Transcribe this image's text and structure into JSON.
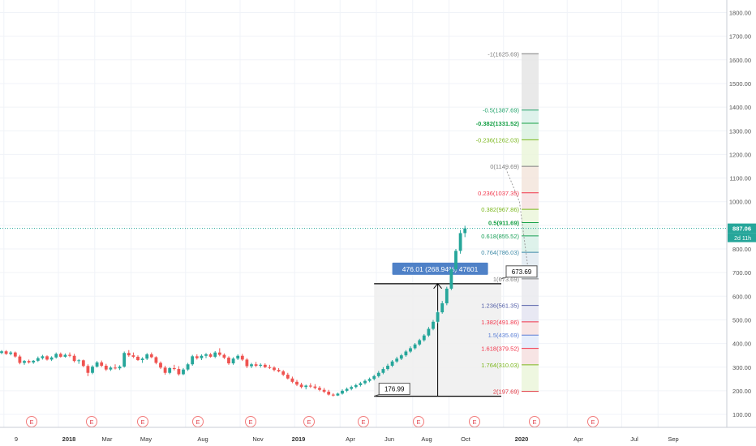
{
  "chart_data": {
    "type": "candlestick",
    "ylim": [
      70,
      1850
    ],
    "y_ticks": [
      "1800.00",
      "1700.00",
      "1600.00",
      "1500.00",
      "1400.00",
      "1300.00",
      "1200.00",
      "1100.00",
      "1000.00",
      "900.00",
      "800.00",
      "700.00",
      "600.00",
      "500.00",
      "400.00",
      "300.00",
      "200.00",
      "100.00"
    ],
    "y_tick_values": [
      1800,
      1700,
      1600,
      1500,
      1400,
      1300,
      1200,
      1100,
      1000,
      900,
      800,
      700,
      600,
      500,
      400,
      300,
      200,
      100
    ],
    "x_ticks": [
      {
        "label": "9",
        "t": 0.5
      },
      {
        "label": "2018",
        "t": 12.5,
        "bold": true
      },
      {
        "label": "Mar",
        "t": 20.5
      },
      {
        "label": "May",
        "t": 28.5
      },
      {
        "label": "Aug",
        "t": 40.5
      },
      {
        "label": "Nov",
        "t": 52.5
      },
      {
        "label": "2019",
        "t": 64.5,
        "bold": true
      },
      {
        "label": "Apr",
        "t": 74.5
      },
      {
        "label": "Jun",
        "t": 82.5
      },
      {
        "label": "Aug",
        "t": 90.5
      },
      {
        "label": "Oct",
        "t": 98.5
      },
      {
        "label": "2020",
        "t": 110.5,
        "bold": true
      },
      {
        "label": "Apr",
        "t": 124.5
      },
      {
        "label": "Jul",
        "t": 136.5
      },
      {
        "label": "Sep",
        "t": 144.5
      }
    ],
    "earnings_markers": [
      "E",
      "E",
      "E",
      "E",
      "E",
      "E",
      "E",
      "E",
      "E",
      "E",
      "E",
      "E"
    ],
    "earnings_t": [
      6,
      19,
      30,
      42,
      53,
      66,
      77,
      89,
      101,
      113,
      126,
      0
    ],
    "candles": [
      [
        360,
        372,
        355,
        367
      ],
      [
        367,
        372,
        352,
        356
      ],
      [
        356,
        368,
        350,
        362
      ],
      [
        362,
        366,
        340,
        345
      ],
      [
        345,
        352,
        312,
        318
      ],
      [
        318,
        330,
        310,
        326
      ],
      [
        326,
        332,
        315,
        320
      ],
      [
        320,
        330,
        314,
        327
      ],
      [
        327,
        345,
        322,
        338
      ],
      [
        338,
        352,
        332,
        346
      ],
      [
        346,
        350,
        328,
        332
      ],
      [
        332,
        346,
        326,
        341
      ],
      [
        341,
        362,
        336,
        356
      ],
      [
        356,
        362,
        340,
        344
      ],
      [
        344,
        358,
        340,
        352
      ],
      [
        352,
        362,
        342,
        348
      ],
      [
        348,
        356,
        320,
        326
      ],
      [
        326,
        334,
        314,
        329
      ],
      [
        329,
        332,
        300,
        305
      ],
      [
        305,
        312,
        262,
        276
      ],
      [
        276,
        308,
        270,
        302
      ],
      [
        302,
        326,
        298,
        320
      ],
      [
        320,
        328,
        300,
        306
      ],
      [
        306,
        314,
        284,
        290
      ],
      [
        290,
        304,
        284,
        298
      ],
      [
        298,
        312,
        290,
        295
      ],
      [
        295,
        308,
        288,
        302
      ],
      [
        302,
        366,
        298,
        360
      ],
      [
        360,
        372,
        344,
        350
      ],
      [
        350,
        362,
        338,
        344
      ],
      [
        344,
        350,
        326,
        330
      ],
      [
        330,
        342,
        318,
        336
      ],
      [
        336,
        360,
        330,
        354
      ],
      [
        354,
        362,
        338,
        342
      ],
      [
        342,
        346,
        312,
        318
      ],
      [
        318,
        324,
        292,
        298
      ],
      [
        298,
        306,
        268,
        276
      ],
      [
        276,
        300,
        270,
        296
      ],
      [
        296,
        310,
        286,
        292
      ],
      [
        292,
        304,
        264,
        270
      ],
      [
        270,
        296,
        266,
        290
      ],
      [
        290,
        318,
        284,
        312
      ],
      [
        312,
        352,
        306,
        346
      ],
      [
        346,
        354,
        332,
        338
      ],
      [
        338,
        354,
        330,
        348
      ],
      [
        348,
        360,
        338,
        354
      ],
      [
        354,
        360,
        340,
        344
      ],
      [
        344,
        368,
        338,
        362
      ],
      [
        362,
        380,
        346,
        352
      ],
      [
        352,
        358,
        334,
        340
      ],
      [
        340,
        346,
        310,
        316
      ],
      [
        316,
        342,
        310,
        336
      ],
      [
        336,
        354,
        330,
        348
      ],
      [
        348,
        356,
        326,
        332
      ],
      [
        332,
        338,
        296,
        304
      ],
      [
        304,
        318,
        296,
        312
      ],
      [
        312,
        322,
        300,
        306
      ],
      [
        306,
        316,
        298,
        310
      ],
      [
        310,
        316,
        296,
        300
      ],
      [
        300,
        310,
        292,
        298
      ],
      [
        298,
        304,
        282,
        288
      ],
      [
        288,
        296,
        278,
        282
      ],
      [
        282,
        288,
        262,
        268
      ],
      [
        268,
        276,
        248,
        252
      ],
      [
        252,
        260,
        232,
        238
      ],
      [
        238,
        246,
        220,
        226
      ],
      [
        226,
        234,
        210,
        216
      ],
      [
        216,
        226,
        206,
        222
      ],
      [
        222,
        232,
        212,
        218
      ],
      [
        218,
        228,
        206,
        212
      ],
      [
        212,
        220,
        198,
        204
      ],
      [
        204,
        212,
        190,
        196
      ],
      [
        196,
        204,
        180,
        184
      ],
      [
        184,
        190,
        176,
        180
      ],
      [
        180,
        192,
        178,
        188
      ],
      [
        188,
        206,
        184,
        200
      ],
      [
        200,
        214,
        194,
        208
      ],
      [
        208,
        222,
        202,
        216
      ],
      [
        216,
        230,
        210,
        224
      ],
      [
        224,
        238,
        218,
        232
      ],
      [
        232,
        248,
        226,
        242
      ],
      [
        242,
        256,
        236,
        250
      ],
      [
        250,
        268,
        244,
        262
      ],
      [
        262,
        284,
        256,
        276
      ],
      [
        276,
        300,
        270,
        292
      ],
      [
        292,
        314,
        286,
        306
      ],
      [
        306,
        330,
        300,
        324
      ],
      [
        324,
        344,
        318,
        336
      ],
      [
        336,
        356,
        330,
        350
      ],
      [
        350,
        372,
        344,
        366
      ],
      [
        366,
        388,
        360,
        380
      ],
      [
        380,
        402,
        374,
        396
      ],
      [
        396,
        420,
        390,
        414
      ],
      [
        414,
        440,
        408,
        434
      ],
      [
        434,
        470,
        428,
        462
      ],
      [
        462,
        500,
        456,
        492
      ],
      [
        492,
        540,
        486,
        532
      ],
      [
        532,
        580,
        526,
        570
      ],
      [
        570,
        640,
        562,
        632
      ],
      [
        632,
        720,
        626,
        714
      ],
      [
        714,
        800,
        708,
        792
      ],
      [
        792,
        880,
        780,
        867
      ],
      [
        867,
        898,
        850,
        887
      ]
    ],
    "projection": {
      "label": "476.01 (268.94%) 47601",
      "from_price": 176.99,
      "to_price": 652.99,
      "from_t": 82,
      "to_t": 110,
      "mid_t": 96
    },
    "fib_levels": [
      {
        "label": "-1(1625.69)",
        "price": 1625.69,
        "color": "#7f7f7f"
      },
      {
        "label": "-0.5(1387.69)",
        "price": 1387.69,
        "color": "#22a36b"
      },
      {
        "label": "-0.382(1331.52)",
        "price": 1331.52,
        "color": "#18a047"
      },
      {
        "label": "-0.236(1262.03)",
        "price": 1262.03,
        "color": "#7bb71d"
      },
      {
        "label": "0(1149.69)",
        "price": 1149.69,
        "color": "#7f7f7f"
      },
      {
        "label": "0.236(1037.35)",
        "price": 1037.35,
        "color": "#f2364b"
      },
      {
        "label": "0.382(967.86)",
        "price": 967.86,
        "color": "#7bb71d"
      },
      {
        "label": "0.5(911.69)",
        "price": 911.69,
        "color": "#18a047"
      },
      {
        "label": "0.618(855.52)",
        "price": 855.52,
        "color": "#1aa058"
      },
      {
        "label": "0.764(786.03)",
        "price": 786.03,
        "color": "#3e8aa7"
      },
      {
        "label": "1(673.69)",
        "price": 673.69,
        "color": "#7f7f7f"
      },
      {
        "label": "1.236(561.35)",
        "price": 561.35,
        "color": "#5460a8"
      },
      {
        "label": "1.382(491.86)",
        "price": 491.86,
        "color": "#f2364b"
      },
      {
        "label": "1.5(435.69)",
        "price": 435.69,
        "color": "#5b7fd6"
      },
      {
        "label": "1.618(379.52)",
        "price": 379.52,
        "color": "#f2364b"
      },
      {
        "label": "1.764(310.03)",
        "price": 310.03,
        "color": "#7bb71d"
      },
      {
        "label": "2(197.69)",
        "price": 197.69,
        "color": "#e0343e"
      }
    ],
    "callouts": [
      {
        "label": "176.99",
        "price": 176.99,
        "t": 82
      },
      {
        "label": "673.69",
        "price": 673.69,
        "t": 110
      }
    ],
    "last_price": {
      "label": "887.06",
      "value": 887.06,
      "sublabel": "2d 11h"
    }
  }
}
